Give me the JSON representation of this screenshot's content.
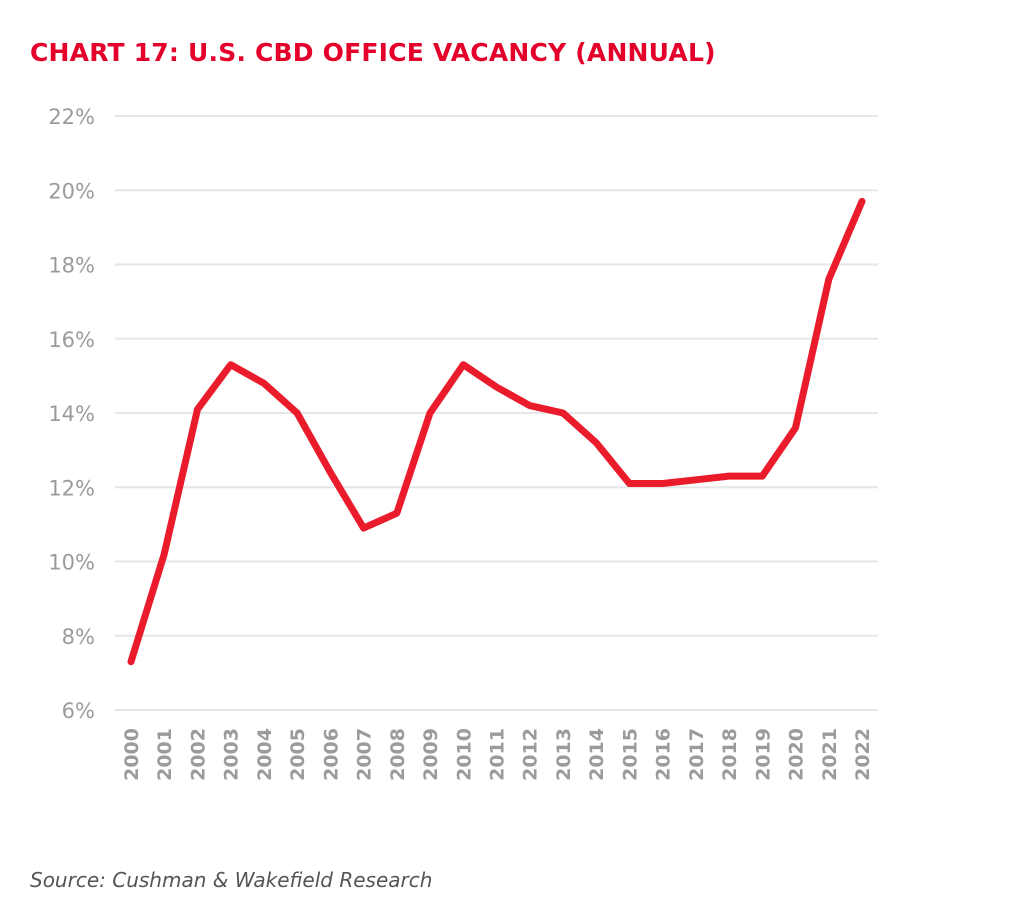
{
  "chart_data": {
    "type": "line",
    "title": "CHART 17: U.S. CBD OFFICE VACANCY (ANNUAL)",
    "xlabel": "",
    "ylabel": "",
    "source": "Source: Cushman & Wakefield Research",
    "categories": [
      "2000",
      "2001",
      "2002",
      "2003",
      "2004",
      "2005",
      "2006",
      "2007",
      "2008",
      "2009",
      "2010",
      "2011",
      "2012",
      "2013",
      "2014",
      "2015",
      "2016",
      "2017",
      "2018",
      "2019",
      "2020",
      "2021",
      "2022"
    ],
    "series": [
      {
        "name": "U.S. CBD Office Vacancy",
        "color": "#ea1c2c",
        "values": [
          7.3,
          10.2,
          14.1,
          15.3,
          14.8,
          14.0,
          12.4,
          10.9,
          11.3,
          14.0,
          15.3,
          14.7,
          14.2,
          14.0,
          13.2,
          12.1,
          12.1,
          12.2,
          12.3,
          12.3,
          13.6,
          17.6,
          19.7
        ]
      }
    ],
    "ylim": [
      6,
      22
    ],
    "yticks": [
      6,
      8,
      10,
      12,
      14,
      16,
      18,
      20,
      22
    ],
    "ytick_labels": [
      "6%",
      "8%",
      "10%",
      "12%",
      "14%",
      "16%",
      "18%",
      "20%",
      "22%"
    ],
    "grid": true,
    "legend": "none",
    "title_color": "#e4002b"
  }
}
